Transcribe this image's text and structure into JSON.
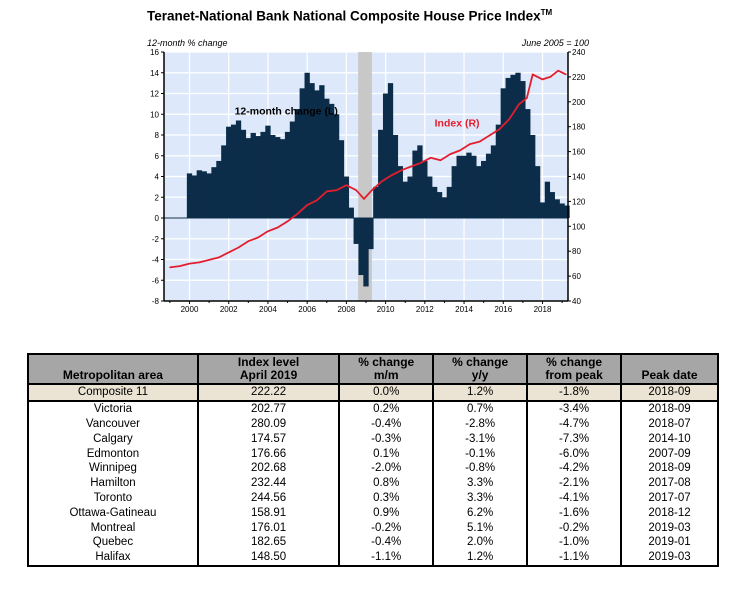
{
  "chart_data": {
    "type": "bar+line",
    "title": "Teranet-National Bank National Composite House Price Index",
    "title_suffix": "TM",
    "left_axis_label": "12-month % change",
    "right_axis_label": "June 2005 = 100",
    "left_ylim": [
      -8,
      16
    ],
    "left_ticks": [
      "16",
      "14",
      "12",
      "10",
      "8",
      "6",
      "4",
      "2",
      "0",
      "-2",
      "-4",
      "-6",
      "-8"
    ],
    "right_ylim": [
      40,
      240
    ],
    "right_ticks": [
      "240",
      "220",
      "200",
      "180",
      "160",
      "140",
      "120",
      "100",
      "80",
      "60",
      "40"
    ],
    "x_range": [
      1998.7,
      2019.3
    ],
    "x_ticks": [
      "2000",
      "2002",
      "2004",
      "2006",
      "2008",
      "2010",
      "2012",
      "2014",
      "2016",
      "2018"
    ],
    "recession_shading": [
      2008.6,
      2009.3
    ],
    "grid": true,
    "annotations": [
      {
        "text": "12-month change (L)",
        "x": 2002.3,
        "y": 10.0,
        "axis": "left",
        "color": "#000000"
      },
      {
        "text": "Index (R)",
        "x": 2012.5,
        "y": 180,
        "axis": "right",
        "color": "#e31e2d"
      }
    ],
    "series": [
      {
        "name": "12-month change (L)",
        "type": "bar",
        "axis": "left",
        "color": "#0c2d4a",
        "x": [
          2000.0,
          2000.25,
          2000.5,
          2000.75,
          2001.0,
          2001.25,
          2001.5,
          2001.75,
          2002.0,
          2002.25,
          2002.5,
          2002.75,
          2003.0,
          2003.25,
          2003.5,
          2003.75,
          2004.0,
          2004.25,
          2004.5,
          2004.75,
          2005.0,
          2005.25,
          2005.5,
          2005.75,
          2006.0,
          2006.25,
          2006.5,
          2006.75,
          2007.0,
          2007.25,
          2007.5,
          2007.75,
          2008.0,
          2008.25,
          2008.5,
          2008.75,
          2009.0,
          2009.25,
          2009.5,
          2009.75,
          2010.0,
          2010.25,
          2010.5,
          2010.75,
          2011.0,
          2011.25,
          2011.5,
          2011.75,
          2012.0,
          2012.25,
          2012.5,
          2012.75,
          2013.0,
          2013.25,
          2013.5,
          2013.75,
          2014.0,
          2014.25,
          2014.5,
          2014.75,
          2015.0,
          2015.25,
          2015.5,
          2015.75,
          2016.0,
          2016.25,
          2016.5,
          2016.75,
          2017.0,
          2017.25,
          2017.5,
          2017.75,
          2018.0,
          2018.25,
          2018.5,
          2018.75,
          2019.0,
          2019.25
        ],
        "values": [
          4.3,
          4.1,
          4.6,
          4.5,
          4.3,
          4.9,
          5.5,
          7.0,
          8.8,
          9.0,
          9.4,
          8.5,
          7.7,
          8.2,
          7.9,
          8.3,
          8.9,
          8.0,
          7.8,
          7.6,
          8.3,
          9.3,
          10.5,
          12.5,
          14.0,
          13.0,
          12.3,
          12.8,
          11.5,
          11.0,
          10.0,
          7.5,
          4.0,
          1.0,
          -2.5,
          -5.5,
          -6.6,
          -3.0,
          3.0,
          8.5,
          12.0,
          13.0,
          8.0,
          5.0,
          3.5,
          4.0,
          6.5,
          7.0,
          5.5,
          4.0,
          3.0,
          2.5,
          2.0,
          3.0,
          5.0,
          6.0,
          6.0,
          6.3,
          6.0,
          5.0,
          5.5,
          6.2,
          7.0,
          9.0,
          12.5,
          13.5,
          13.8,
          14.0,
          13.2,
          10.5,
          8.0,
          5.0,
          1.5,
          3.5,
          2.5,
          1.8,
          1.4,
          1.2
        ]
      },
      {
        "name": "Index (R)",
        "type": "line",
        "axis": "right",
        "color": "#e31e2d",
        "x": [
          1999.0,
          1999.5,
          2000.0,
          2000.5,
          2001.0,
          2001.5,
          2002.0,
          2002.5,
          2003.0,
          2003.5,
          2004.0,
          2004.5,
          2005.0,
          2005.5,
          2006.0,
          2006.5,
          2007.0,
          2007.5,
          2008.0,
          2008.5,
          2008.9,
          2009.3,
          2009.8,
          2010.3,
          2010.8,
          2011.3,
          2011.8,
          2012.3,
          2012.8,
          2013.3,
          2013.8,
          2014.3,
          2014.8,
          2015.3,
          2015.8,
          2016.3,
          2016.8,
          2017.2,
          2017.5,
          2018.0,
          2018.4,
          2018.8,
          2019.2
        ],
        "values": [
          67,
          68,
          70,
          71,
          73,
          75,
          79,
          83,
          88,
          91,
          96,
          99,
          104,
          110,
          117,
          121,
          128,
          129,
          133,
          129,
          122,
          129,
          136,
          141,
          145,
          148,
          151,
          155,
          153,
          158,
          161,
          166,
          168,
          173,
          178,
          186,
          198,
          203,
          222,
          218,
          220,
          225,
          222
        ]
      }
    ]
  },
  "table": {
    "headers": [
      {
        "line1": "",
        "line2": "Metropolitan area"
      },
      {
        "line1": "Index level",
        "line2": "April 2019"
      },
      {
        "line1": "% change",
        "line2": "m/m"
      },
      {
        "line1": "% change",
        "line2": "y/y"
      },
      {
        "line1": "% change",
        "line2": "from peak"
      },
      {
        "line1": "",
        "line2": "Peak date"
      }
    ],
    "rows": [
      [
        "Composite 11",
        "222.22",
        "0.0%",
        "1.2%",
        "-1.8%",
        "2018-09"
      ],
      [
        "Victoria",
        "202.77",
        "0.2%",
        "0.7%",
        "-3.4%",
        "2018-09"
      ],
      [
        "Vancouver",
        "280.09",
        "-0.4%",
        "-2.8%",
        "-4.7%",
        "2018-07"
      ],
      [
        "Calgary",
        "174.57",
        "-0.3%",
        "-3.1%",
        "-7.3%",
        "2014-10"
      ],
      [
        "Edmonton",
        "176.66",
        "0.1%",
        "-0.1%",
        "-6.0%",
        "2007-09"
      ],
      [
        "Winnipeg",
        "202.68",
        "-2.0%",
        "-0.8%",
        "-4.2%",
        "2018-09"
      ],
      [
        "Hamilton",
        "232.44",
        "0.8%",
        "3.3%",
        "-2.1%",
        "2017-08"
      ],
      [
        "Toronto",
        "244.56",
        "0.3%",
        "3.3%",
        "-4.1%",
        "2017-07"
      ],
      [
        "Ottawa-Gatineau",
        "158.91",
        "0.9%",
        "6.2%",
        "-1.6%",
        "2018-12"
      ],
      [
        "Montreal",
        "176.01",
        "-0.2%",
        "5.1%",
        "-0.2%",
        "2019-03"
      ],
      [
        "Quebec",
        "182.65",
        "-0.4%",
        "2.0%",
        "-1.0%",
        "2019-01"
      ],
      [
        "Halifax",
        "148.50",
        "-1.1%",
        "1.2%",
        "-1.1%",
        "2019-03"
      ]
    ]
  }
}
